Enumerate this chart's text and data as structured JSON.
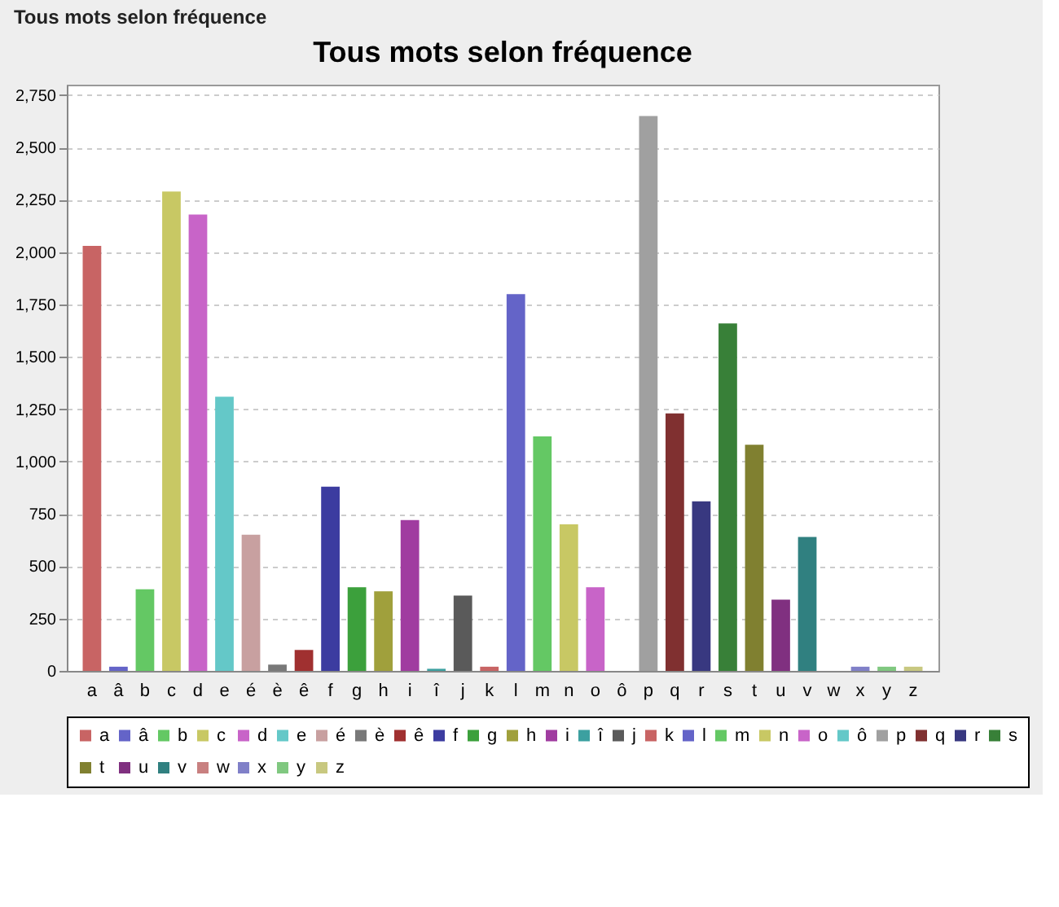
{
  "chart_data": {
    "type": "bar",
    "title": "Tous mots selon fréquence",
    "annotations": [
      "Tous mots selon fréquence"
    ],
    "categories": [
      "a",
      "â",
      "b",
      "c",
      "d",
      "e",
      "é",
      "è",
      "ê",
      "f",
      "g",
      "h",
      "i",
      "î",
      "j",
      "k",
      "l",
      "m",
      "n",
      "o",
      "ô",
      "p",
      "q",
      "r",
      "s",
      "t",
      "u",
      "v",
      "w",
      "x",
      "y",
      "z"
    ],
    "series": [
      {
        "name": "a",
        "color": "#c86464",
        "values": [
          2030,
          null,
          null,
          null,
          null,
          null,
          null,
          null,
          null,
          null,
          null,
          null,
          null,
          null,
          null,
          null,
          null,
          null,
          null,
          null,
          null,
          null,
          null,
          null,
          null,
          null,
          null,
          null,
          null,
          null,
          null,
          null
        ]
      },
      {
        "name": "â",
        "color": "#6464c8",
        "values": [
          null,
          20,
          null,
          null,
          null,
          null,
          null,
          null,
          null,
          null,
          null,
          null,
          null,
          null,
          null,
          null,
          null,
          null,
          null,
          null,
          null,
          null,
          null,
          null,
          null,
          null,
          null,
          null,
          null,
          null,
          null,
          null
        ]
      },
      {
        "name": "b",
        "color": "#64c864",
        "values": [
          null,
          null,
          390,
          null,
          null,
          null,
          null,
          null,
          null,
          null,
          null,
          null,
          null,
          null,
          null,
          null,
          null,
          null,
          null,
          null,
          null,
          null,
          null,
          null,
          null,
          null,
          null,
          null,
          null,
          null,
          null,
          null
        ]
      },
      {
        "name": "c",
        "color": "#c8c864",
        "values": [
          null,
          null,
          null,
          2290,
          null,
          null,
          null,
          null,
          null,
          null,
          null,
          null,
          null,
          null,
          null,
          null,
          null,
          null,
          null,
          null,
          null,
          null,
          null,
          null,
          null,
          null,
          null,
          null,
          null,
          null,
          null,
          null
        ]
      },
      {
        "name": "d",
        "color": "#c864c8",
        "values": [
          null,
          null,
          null,
          null,
          2180,
          null,
          null,
          null,
          null,
          null,
          null,
          null,
          null,
          null,
          null,
          null,
          null,
          null,
          null,
          null,
          null,
          null,
          null,
          null,
          null,
          null,
          null,
          null,
          null,
          null,
          null,
          null
        ]
      },
      {
        "name": "e",
        "color": "#64c8c8",
        "values": [
          null,
          null,
          null,
          null,
          null,
          1310,
          null,
          null,
          null,
          null,
          null,
          null,
          null,
          null,
          null,
          null,
          null,
          null,
          null,
          null,
          null,
          null,
          null,
          null,
          null,
          null,
          null,
          null,
          null,
          null,
          null,
          null
        ]
      },
      {
        "name": "é",
        "color": "#c8a0a0",
        "values": [
          null,
          null,
          null,
          null,
          null,
          null,
          650,
          null,
          null,
          null,
          null,
          null,
          null,
          null,
          null,
          null,
          null,
          null,
          null,
          null,
          null,
          null,
          null,
          null,
          null,
          null,
          null,
          null,
          null,
          null,
          null,
          null
        ]
      },
      {
        "name": "è",
        "color": "#787878",
        "values": [
          null,
          null,
          null,
          null,
          null,
          null,
          null,
          30,
          null,
          null,
          null,
          null,
          null,
          null,
          null,
          null,
          null,
          null,
          null,
          null,
          null,
          null,
          null,
          null,
          null,
          null,
          null,
          null,
          null,
          null,
          null,
          null
        ]
      },
      {
        "name": "ê",
        "color": "#a03030",
        "values": [
          null,
          null,
          null,
          null,
          null,
          null,
          null,
          null,
          100,
          null,
          null,
          null,
          null,
          null,
          null,
          null,
          null,
          null,
          null,
          null,
          null,
          null,
          null,
          null,
          null,
          null,
          null,
          null,
          null,
          null,
          null,
          null
        ]
      },
      {
        "name": "f",
        "color": "#3c3ca0",
        "values": [
          null,
          null,
          null,
          null,
          null,
          null,
          null,
          null,
          null,
          880,
          null,
          null,
          null,
          null,
          null,
          null,
          null,
          null,
          null,
          null,
          null,
          null,
          null,
          null,
          null,
          null,
          null,
          null,
          null,
          null,
          null,
          null
        ]
      },
      {
        "name": "g",
        "color": "#3ca03c",
        "values": [
          null,
          null,
          null,
          null,
          null,
          null,
          null,
          null,
          null,
          null,
          400,
          null,
          null,
          null,
          null,
          null,
          null,
          null,
          null,
          null,
          null,
          null,
          null,
          null,
          null,
          null,
          null,
          null,
          null,
          null,
          null,
          null
        ]
      },
      {
        "name": "h",
        "color": "#a0a03c",
        "values": [
          null,
          null,
          null,
          null,
          null,
          null,
          null,
          null,
          null,
          null,
          null,
          380,
          null,
          null,
          null,
          null,
          null,
          null,
          null,
          null,
          null,
          null,
          null,
          null,
          null,
          null,
          null,
          null,
          null,
          null,
          null,
          null
        ]
      },
      {
        "name": "i",
        "color": "#a03ca0",
        "values": [
          null,
          null,
          null,
          null,
          null,
          null,
          null,
          null,
          null,
          null,
          null,
          null,
          720,
          null,
          null,
          null,
          null,
          null,
          null,
          null,
          null,
          null,
          null,
          null,
          null,
          null,
          null,
          null,
          null,
          null,
          null,
          null
        ]
      },
      {
        "name": "î",
        "color": "#3ca0a0",
        "values": [
          null,
          null,
          null,
          null,
          null,
          null,
          null,
          null,
          null,
          null,
          null,
          null,
          null,
          10,
          null,
          null,
          null,
          null,
          null,
          null,
          null,
          null,
          null,
          null,
          null,
          null,
          null,
          null,
          null,
          null,
          null,
          null
        ]
      },
      {
        "name": "j",
        "color": "#5a5a5a",
        "values": [
          null,
          null,
          null,
          null,
          null,
          null,
          null,
          null,
          null,
          null,
          null,
          null,
          null,
          null,
          360,
          null,
          null,
          null,
          null,
          null,
          null,
          null,
          null,
          null,
          null,
          null,
          null,
          null,
          null,
          null,
          null,
          null
        ]
      },
      {
        "name": "k",
        "color": "#c86464",
        "values": [
          null,
          null,
          null,
          null,
          null,
          null,
          null,
          null,
          null,
          null,
          null,
          null,
          null,
          null,
          null,
          20,
          null,
          null,
          null,
          null,
          null,
          null,
          null,
          null,
          null,
          null,
          null,
          null,
          null,
          null,
          null,
          null
        ]
      },
      {
        "name": "l",
        "color": "#6464c8",
        "values": [
          null,
          null,
          null,
          null,
          null,
          null,
          null,
          null,
          null,
          null,
          null,
          null,
          null,
          null,
          null,
          null,
          1800,
          null,
          null,
          null,
          null,
          null,
          null,
          null,
          null,
          null,
          null,
          null,
          null,
          null,
          null,
          null
        ]
      },
      {
        "name": "m",
        "color": "#64c864",
        "values": [
          null,
          null,
          null,
          null,
          null,
          null,
          null,
          null,
          null,
          null,
          null,
          null,
          null,
          null,
          null,
          null,
          null,
          1120,
          null,
          null,
          null,
          null,
          null,
          null,
          null,
          null,
          null,
          null,
          null,
          null,
          null,
          null
        ]
      },
      {
        "name": "n",
        "color": "#c8c864",
        "values": [
          null,
          null,
          null,
          null,
          null,
          null,
          null,
          null,
          null,
          null,
          null,
          null,
          null,
          null,
          null,
          null,
          null,
          null,
          700,
          null,
          null,
          null,
          null,
          null,
          null,
          null,
          null,
          null,
          null,
          null,
          null,
          null
        ]
      },
      {
        "name": "o",
        "color": "#c864c8",
        "values": [
          null,
          null,
          null,
          null,
          null,
          null,
          null,
          null,
          null,
          null,
          null,
          null,
          null,
          null,
          null,
          null,
          null,
          null,
          null,
          400,
          null,
          null,
          null,
          null,
          null,
          null,
          null,
          null,
          null,
          null,
          null,
          null
        ]
      },
      {
        "name": "ô",
        "color": "#64c8c8",
        "values": [
          null,
          null,
          null,
          null,
          null,
          null,
          null,
          null,
          null,
          null,
          null,
          null,
          null,
          null,
          null,
          null,
          null,
          null,
          null,
          null,
          null,
          null,
          null,
          null,
          null,
          null,
          null,
          null,
          null,
          null,
          null,
          null
        ]
      },
      {
        "name": "p",
        "color": "#a0a0a0",
        "values": [
          null,
          null,
          null,
          null,
          null,
          null,
          null,
          null,
          null,
          null,
          null,
          null,
          null,
          null,
          null,
          null,
          null,
          null,
          null,
          null,
          null,
          2650,
          null,
          null,
          null,
          null,
          null,
          null,
          null,
          null,
          null,
          null
        ]
      },
      {
        "name": "q",
        "color": "#803030",
        "values": [
          null,
          null,
          null,
          null,
          null,
          null,
          null,
          null,
          null,
          null,
          null,
          null,
          null,
          null,
          null,
          null,
          null,
          null,
          null,
          null,
          null,
          null,
          1230,
          null,
          null,
          null,
          null,
          null,
          null,
          null,
          null,
          null
        ]
      },
      {
        "name": "r",
        "color": "#383880",
        "values": [
          null,
          null,
          null,
          null,
          null,
          null,
          null,
          null,
          null,
          null,
          null,
          null,
          null,
          null,
          null,
          null,
          null,
          null,
          null,
          null,
          null,
          null,
          null,
          810,
          null,
          null,
          null,
          null,
          null,
          null,
          null,
          null
        ]
      },
      {
        "name": "s",
        "color": "#388038",
        "values": [
          null,
          null,
          null,
          null,
          null,
          null,
          null,
          null,
          null,
          null,
          null,
          null,
          null,
          null,
          null,
          null,
          null,
          null,
          null,
          null,
          null,
          null,
          null,
          null,
          1660,
          null,
          null,
          null,
          null,
          null,
          null,
          null
        ]
      },
      {
        "name": "t",
        "color": "#808030",
        "values": [
          null,
          null,
          null,
          null,
          null,
          null,
          null,
          null,
          null,
          null,
          null,
          null,
          null,
          null,
          null,
          null,
          null,
          null,
          null,
          null,
          null,
          null,
          null,
          null,
          null,
          1080,
          null,
          null,
          null,
          null,
          null,
          null
        ]
      },
      {
        "name": "u",
        "color": "#803080",
        "values": [
          null,
          null,
          null,
          null,
          null,
          null,
          null,
          null,
          null,
          null,
          null,
          null,
          null,
          null,
          null,
          null,
          null,
          null,
          null,
          null,
          null,
          null,
          null,
          null,
          null,
          null,
          340,
          null,
          null,
          null,
          null,
          null
        ]
      },
      {
        "name": "v",
        "color": "#308080",
        "values": [
          null,
          null,
          null,
          null,
          null,
          null,
          null,
          null,
          null,
          null,
          null,
          null,
          null,
          null,
          null,
          null,
          null,
          null,
          null,
          null,
          null,
          null,
          null,
          null,
          null,
          null,
          null,
          640,
          null,
          null,
          null,
          null
        ]
      },
      {
        "name": "w",
        "color": "#c88080",
        "values": [
          null,
          null,
          null,
          null,
          null,
          null,
          null,
          null,
          null,
          null,
          null,
          null,
          null,
          null,
          null,
          null,
          null,
          null,
          null,
          null,
          null,
          null,
          null,
          null,
          null,
          null,
          null,
          null,
          null,
          null,
          null,
          null
        ]
      },
      {
        "name": "x",
        "color": "#8080c8",
        "values": [
          null,
          null,
          null,
          null,
          null,
          null,
          null,
          null,
          null,
          null,
          null,
          null,
          null,
          null,
          null,
          null,
          null,
          null,
          null,
          null,
          null,
          null,
          null,
          null,
          null,
          null,
          null,
          null,
          null,
          20,
          null,
          null
        ]
      },
      {
        "name": "y",
        "color": "#80c880",
        "values": [
          null,
          null,
          null,
          null,
          null,
          null,
          null,
          null,
          null,
          null,
          null,
          null,
          null,
          null,
          null,
          null,
          null,
          null,
          null,
          null,
          null,
          null,
          null,
          null,
          null,
          null,
          null,
          null,
          null,
          null,
          20,
          null
        ]
      },
      {
        "name": "z",
        "color": "#c8c880",
        "values": [
          null,
          null,
          null,
          null,
          null,
          null,
          null,
          null,
          null,
          null,
          null,
          null,
          null,
          null,
          null,
          null,
          null,
          null,
          null,
          null,
          null,
          null,
          null,
          null,
          null,
          null,
          null,
          null,
          null,
          null,
          null,
          20
        ]
      }
    ],
    "ylim": [
      0,
      2800
    ],
    "yticks": [
      0,
      250,
      500,
      750,
      {
        "value": 1000,
        "label": "1,000"
      },
      {
        "value": 1250,
        "label": "1,250"
      },
      {
        "value": 1500,
        "label": "1,500"
      },
      {
        "value": 1750,
        "label": "1,750"
      },
      {
        "value": 2000,
        "label": "2,000"
      },
      {
        "value": 2250,
        "label": "2,250"
      },
      {
        "value": 2500,
        "label": "2,500"
      },
      {
        "value": 2750,
        "label": "2,750"
      }
    ],
    "grid": "y",
    "legend": "bottom"
  }
}
